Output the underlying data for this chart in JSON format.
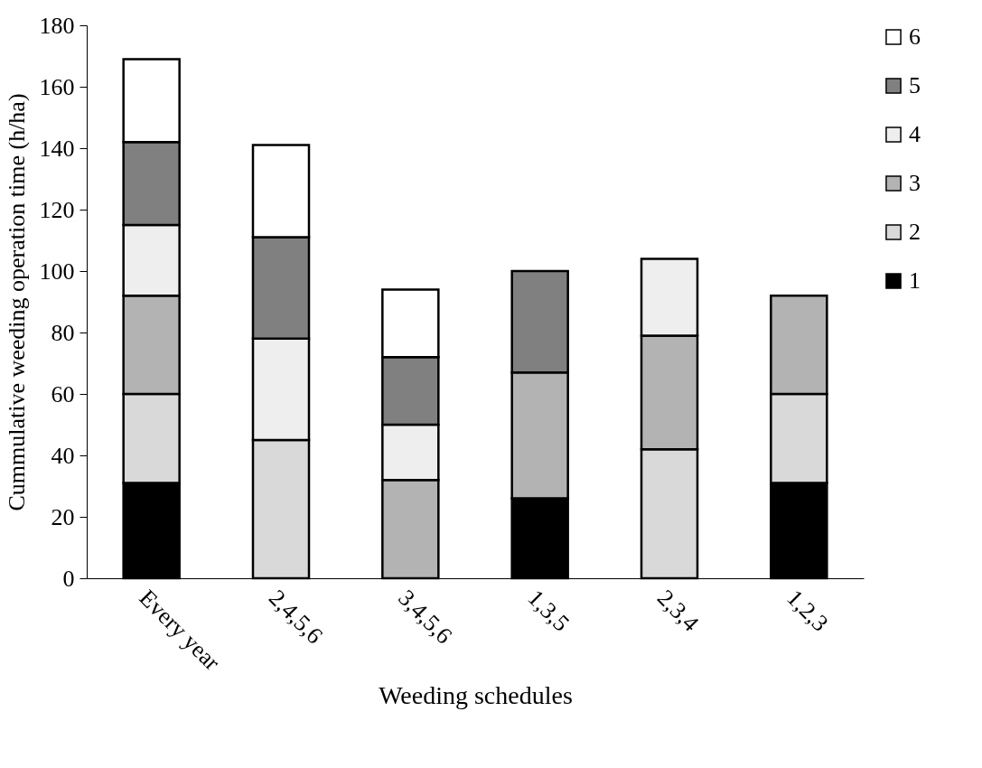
{
  "chart_data": {
    "type": "bar",
    "stacked": true,
    "xlabel": "Weeding schedules",
    "ylabel": "Cummulative weeding operation time (h/ha)",
    "categories": [
      "Every year",
      "2,4,5,6",
      "3,4,5,6",
      "1,3,5",
      "2,3,4",
      "1,2,3"
    ],
    "series": [
      {
        "name": "1",
        "color": "#000000",
        "values": [
          31,
          null,
          null,
          26,
          null,
          31
        ]
      },
      {
        "name": "2",
        "color": "#d9d9d9",
        "values": [
          29,
          45,
          null,
          null,
          42,
          29
        ]
      },
      {
        "name": "3",
        "color": "#b3b3b3",
        "values": [
          32,
          null,
          32,
          41,
          37,
          32
        ]
      },
      {
        "name": "4",
        "color": "#eeeeee",
        "values": [
          23,
          33,
          18,
          null,
          25,
          null
        ]
      },
      {
        "name": "5",
        "color": "#808080",
        "values": [
          27,
          33,
          22,
          33,
          null,
          null
        ]
      },
      {
        "name": "6",
        "color": "#ffffff",
        "values": [
          27,
          30,
          22,
          null,
          null,
          null
        ]
      }
    ],
    "ylim": [
      0,
      180
    ],
    "yticks": [
      0,
      20,
      40,
      60,
      80,
      100,
      120,
      140,
      160,
      180
    ],
    "grid": false,
    "legend": "right"
  }
}
